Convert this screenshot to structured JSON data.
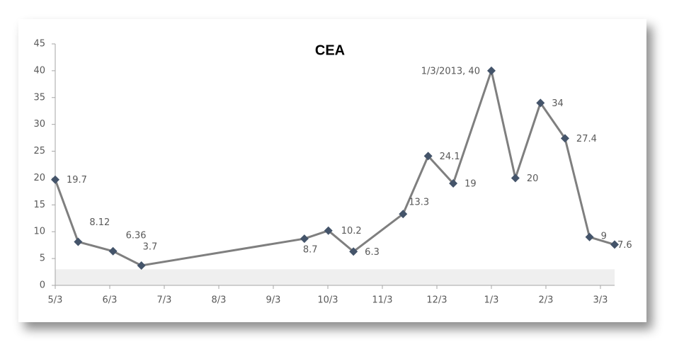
{
  "chart_data": {
    "type": "line",
    "title": "CEA",
    "x": [
      0,
      0.42,
      1.06,
      1.58,
      4.57,
      5.01,
      5.47,
      6.38,
      6.84,
      7.3,
      8,
      8.44,
      8.9,
      9.35,
      9.8,
      10.26
    ],
    "series": [
      {
        "name": "CEA",
        "color": "#7f7f7f",
        "marker_color": "#44546a",
        "values": [
          19.7,
          8.12,
          6.36,
          3.7,
          8.7,
          10.2,
          6.3,
          13.3,
          24.1,
          19,
          40,
          20,
          34,
          27.4,
          9,
          7.6
        ],
        "value_labels": [
          "19.7",
          "8.12",
          "6.36",
          "3.7",
          "8.7",
          "10.2",
          "6.3",
          "13.3",
          "24.1",
          "19",
          "1/3/2013, 40",
          "20",
          "34",
          "27.4",
          "9",
          "7.6"
        ]
      }
    ],
    "xlim": [
      0,
      10.26
    ],
    "xticks": [
      {
        "value": 0,
        "label": "5/3"
      },
      {
        "value": 1,
        "label": "6/3"
      },
      {
        "value": 2,
        "label": "7/3"
      },
      {
        "value": 3,
        "label": "8/3"
      },
      {
        "value": 4,
        "label": "9/3"
      },
      {
        "value": 5,
        "label": "10/3"
      },
      {
        "value": 6,
        "label": "11/3"
      },
      {
        "value": 7,
        "label": "12/3"
      },
      {
        "value": 8,
        "label": "1/3"
      },
      {
        "value": 9,
        "label": "2/3"
      },
      {
        "value": 10,
        "label": "3/3"
      }
    ],
    "ylim": [
      0,
      45
    ],
    "yticks": [
      0,
      5,
      10,
      15,
      20,
      25,
      30,
      35,
      40,
      45
    ],
    "reference_band": {
      "ylim": [
        0,
        3
      ],
      "color": "#efefef"
    },
    "grid": false
  }
}
